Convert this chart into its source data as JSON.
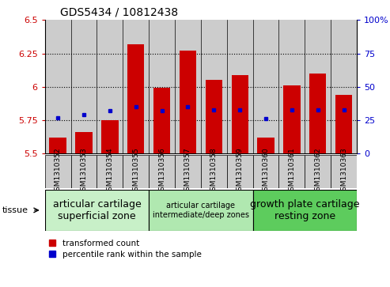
{
  "title": "GDS5434 / 10812438",
  "samples": [
    "GSM1310352",
    "GSM1310353",
    "GSM1310354",
    "GSM1310355",
    "GSM1310356",
    "GSM1310357",
    "GSM1310358",
    "GSM1310359",
    "GSM1310360",
    "GSM1310361",
    "GSM1310362",
    "GSM1310363"
  ],
  "red_values": [
    5.62,
    5.66,
    5.75,
    6.32,
    5.99,
    6.27,
    6.05,
    6.09,
    5.62,
    6.01,
    6.1,
    5.94
  ],
  "blue_values": [
    27,
    29,
    32,
    35,
    32,
    35,
    33,
    33,
    26,
    33,
    33,
    33
  ],
  "ylim_left": [
    5.5,
    6.5
  ],
  "ylim_right": [
    0,
    100
  ],
  "yticks_left": [
    5.5,
    5.75,
    6.0,
    6.25,
    6.5
  ],
  "yticks_right": [
    0,
    25,
    50,
    75,
    100
  ],
  "ytick_labels_left": [
    "5.5",
    "5.75",
    "6",
    "6.25",
    "6.5"
  ],
  "ytick_labels_right": [
    "0",
    "25",
    "50",
    "75",
    "100%"
  ],
  "hlines": [
    5.75,
    6.0,
    6.25
  ],
  "bar_bottom": 5.5,
  "groups": [
    {
      "label": "articular cartilage\nsuperficial zone",
      "start": 0,
      "end": 3,
      "color": "#c8f0c8",
      "fontsize": 9
    },
    {
      "label": "articular cartilage\nintermediate/deep zones",
      "start": 4,
      "end": 7,
      "color": "#b0e8b0",
      "fontsize": 7
    },
    {
      "label": "growth plate cartilage\nresting zone",
      "start": 8,
      "end": 11,
      "color": "#5dcc5d",
      "fontsize": 9
    }
  ],
  "tissue_label": "tissue",
  "legend_red": "transformed count",
  "legend_blue": "percentile rank within the sample",
  "red_color": "#cc0000",
  "blue_color": "#0000cc",
  "bar_width": 0.65,
  "col_bg_color": "#cccccc",
  "title_fontsize": 10
}
